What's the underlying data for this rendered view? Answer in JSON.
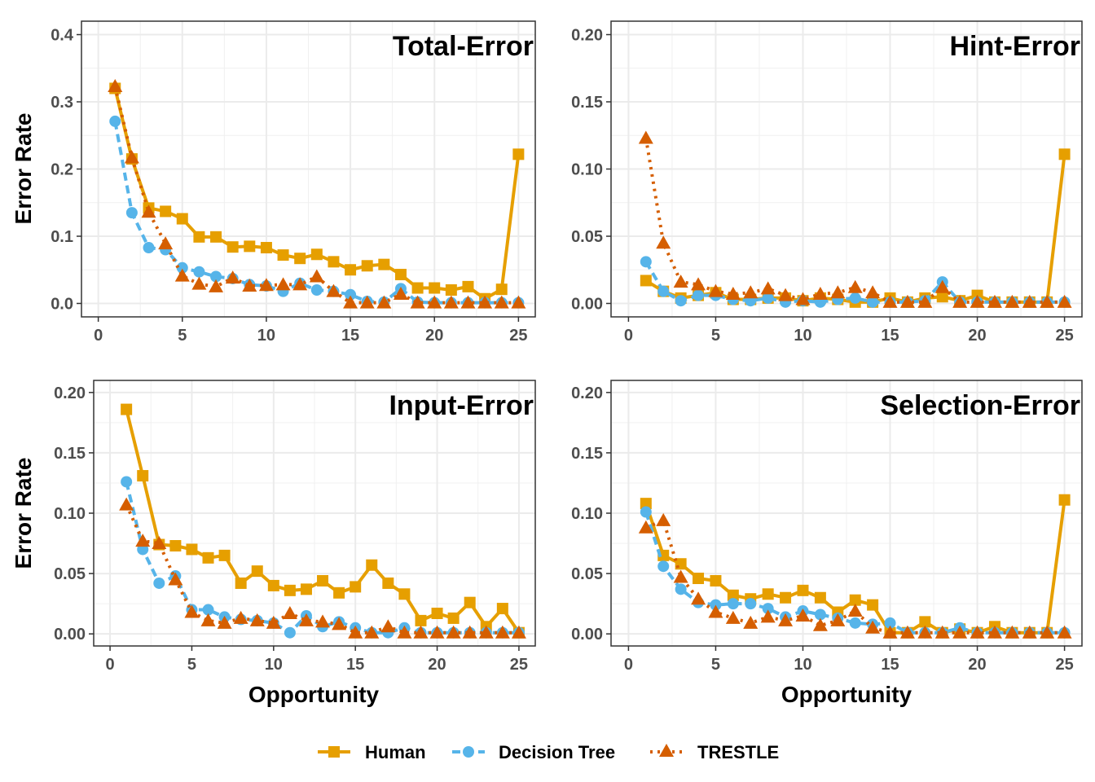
{
  "chart_data": {
    "type": "line",
    "x": [
      1,
      2,
      3,
      4,
      5,
      6,
      7,
      8,
      9,
      10,
      11,
      12,
      13,
      14,
      15,
      16,
      17,
      18,
      19,
      20,
      21,
      22,
      23,
      24,
      25
    ],
    "xlim": [
      0,
      25
    ],
    "xticks": [
      0,
      5,
      10,
      15,
      20,
      25
    ],
    "xlabel": "Opportunity",
    "ylabel": "Error Rate",
    "grid": true,
    "legend_position": "bottom",
    "series_styles": [
      {
        "name": "Human",
        "color": "#E69F00",
        "marker": "square",
        "dash": "solid"
      },
      {
        "name": "Decision Tree",
        "color": "#56B4E9",
        "marker": "circle",
        "dash": "dashed"
      },
      {
        "name": "TRESTLE",
        "color": "#D55E00",
        "marker": "triangle",
        "dash": "dotted"
      }
    ],
    "panels": [
      {
        "title": "Total-Error",
        "ylim": [
          -0.02,
          0.42
        ],
        "yticks": [
          0.0,
          0.1,
          0.2,
          0.3,
          0.4
        ],
        "ytick_labels": [
          "0.0",
          "0.1",
          "0.2",
          "0.3",
          "0.4"
        ],
        "series": [
          {
            "name": "Human",
            "values": [
              0.32,
              0.215,
              0.142,
              0.137,
              0.126,
              0.099,
              0.099,
              0.084,
              0.085,
              0.083,
              0.072,
              0.067,
              0.073,
              0.062,
              0.05,
              0.056,
              0.058,
              0.043,
              0.023,
              0.023,
              0.02,
              0.025,
              0.007,
              0.021,
              0.222
            ]
          },
          {
            "name": "Decision Tree",
            "values": [
              0.271,
              0.135,
              0.083,
              0.08,
              0.053,
              0.047,
              0.04,
              0.037,
              0.028,
              0.026,
              0.018,
              0.03,
              0.02,
              0.018,
              0.013,
              0.003,
              0.002,
              0.022,
              0.002,
              0.001,
              0.001,
              0.001,
              0.001,
              0.001,
              0.001
            ]
          },
          {
            "name": "TRESTLE",
            "values": [
              0.323,
              0.217,
              0.136,
              0.089,
              0.041,
              0.029,
              0.025,
              0.038,
              0.026,
              0.027,
              0.028,
              0.028,
              0.04,
              0.018,
              0.001,
              0.001,
              0.001,
              0.014,
              0.001,
              0.001,
              0.001,
              0.001,
              0.001,
              0.001,
              0.001
            ]
          }
        ]
      },
      {
        "title": "Hint-Error",
        "ylim": [
          -0.01,
          0.21
        ],
        "yticks": [
          0.0,
          0.05,
          0.1,
          0.15,
          0.2
        ],
        "ytick_labels": [
          "0.00",
          "0.05",
          "0.10",
          "0.15",
          "0.20"
        ],
        "series": [
          {
            "name": "Human",
            "values": [
              0.017,
              0.009,
              0.004,
              0.006,
              0.008,
              0.003,
              0.003,
              0.004,
              0.004,
              0.002,
              0.004,
              0.003,
              0.001,
              0.001,
              0.004,
              0.001,
              0.004,
              0.005,
              0.002,
              0.006,
              0.001,
              0.001,
              0.001,
              0.001,
              0.111
            ]
          },
          {
            "name": "Decision Tree",
            "values": [
              0.031,
              0.009,
              0.002,
              0.006,
              0.006,
              0.003,
              0.002,
              0.004,
              0.001,
              0.002,
              0.001,
              0.003,
              0.004,
              0.001,
              0.001,
              0.001,
              0.002,
              0.016,
              0.001,
              0.001,
              0.001,
              0.001,
              0.001,
              0.001,
              0.001
            ]
          },
          {
            "name": "TRESTLE",
            "values": [
              0.123,
              0.045,
              0.016,
              0.014,
              0.009,
              0.007,
              0.008,
              0.011,
              0.006,
              0.003,
              0.007,
              0.008,
              0.012,
              0.008,
              0.001,
              0.001,
              0.001,
              0.012,
              0.001,
              0.001,
              0.001,
              0.001,
              0.001,
              0.001,
              0.001
            ]
          }
        ]
      },
      {
        "title": "Input-Error",
        "ylim": [
          -0.01,
          0.21
        ],
        "yticks": [
          0.0,
          0.05,
          0.1,
          0.15,
          0.2
        ],
        "ytick_labels": [
          "0.00",
          "0.05",
          "0.10",
          "0.15",
          "0.20"
        ],
        "series": [
          {
            "name": "Human",
            "values": [
              0.186,
              0.131,
              0.074,
              0.073,
              0.07,
              0.063,
              0.065,
              0.042,
              0.052,
              0.04,
              0.036,
              0.037,
              0.044,
              0.034,
              0.039,
              0.057,
              0.042,
              0.033,
              0.011,
              0.017,
              0.013,
              0.026,
              0.006,
              0.021,
              0.001
            ]
          },
          {
            "name": "Decision Tree",
            "values": [
              0.126,
              0.07,
              0.042,
              0.048,
              0.02,
              0.02,
              0.014,
              0.012,
              0.011,
              0.009,
              0.001,
              0.015,
              0.006,
              0.01,
              0.005,
              0.001,
              0.001,
              0.005,
              0.001,
              0.001,
              0.001,
              0.001,
              0.001,
              0.001,
              0.001
            ]
          },
          {
            "name": "TRESTLE",
            "values": [
              0.107,
              0.077,
              0.075,
              0.045,
              0.018,
              0.011,
              0.009,
              0.013,
              0.011,
              0.009,
              0.017,
              0.011,
              0.01,
              0.008,
              0.001,
              0.001,
              0.006,
              0.001,
              0.001,
              0.001,
              0.001,
              0.001,
              0.001,
              0.001,
              0.001
            ]
          }
        ]
      },
      {
        "title": "Selection-Error",
        "ylim": [
          -0.01,
          0.21
        ],
        "yticks": [
          0.0,
          0.05,
          0.1,
          0.15,
          0.2
        ],
        "ytick_labels": [
          "0.00",
          "0.05",
          "0.10",
          "0.15",
          "0.20"
        ],
        "series": [
          {
            "name": "Human",
            "values": [
              0.108,
              0.065,
              0.058,
              0.046,
              0.044,
              0.032,
              0.029,
              0.033,
              0.03,
              0.036,
              0.03,
              0.018,
              0.028,
              0.024,
              0.001,
              0.001,
              0.01,
              0.001,
              0.004,
              0.001,
              0.006,
              0.001,
              0.001,
              0.001,
              0.111
            ]
          },
          {
            "name": "Decision Tree",
            "values": [
              0.101,
              0.056,
              0.037,
              0.026,
              0.024,
              0.025,
              0.025,
              0.021,
              0.014,
              0.019,
              0.016,
              0.013,
              0.009,
              0.008,
              0.009,
              0.001,
              0.001,
              0.001,
              0.005,
              0.001,
              0.001,
              0.001,
              0.001,
              0.001,
              0.001
            ]
          },
          {
            "name": "TRESTLE",
            "values": [
              0.088,
              0.094,
              0.047,
              0.029,
              0.018,
              0.013,
              0.009,
              0.014,
              0.011,
              0.015,
              0.007,
              0.011,
              0.019,
              0.005,
              0.001,
              0.001,
              0.001,
              0.001,
              0.001,
              0.001,
              0.001,
              0.001,
              0.001,
              0.001,
              0.001
            ]
          }
        ]
      }
    ]
  }
}
